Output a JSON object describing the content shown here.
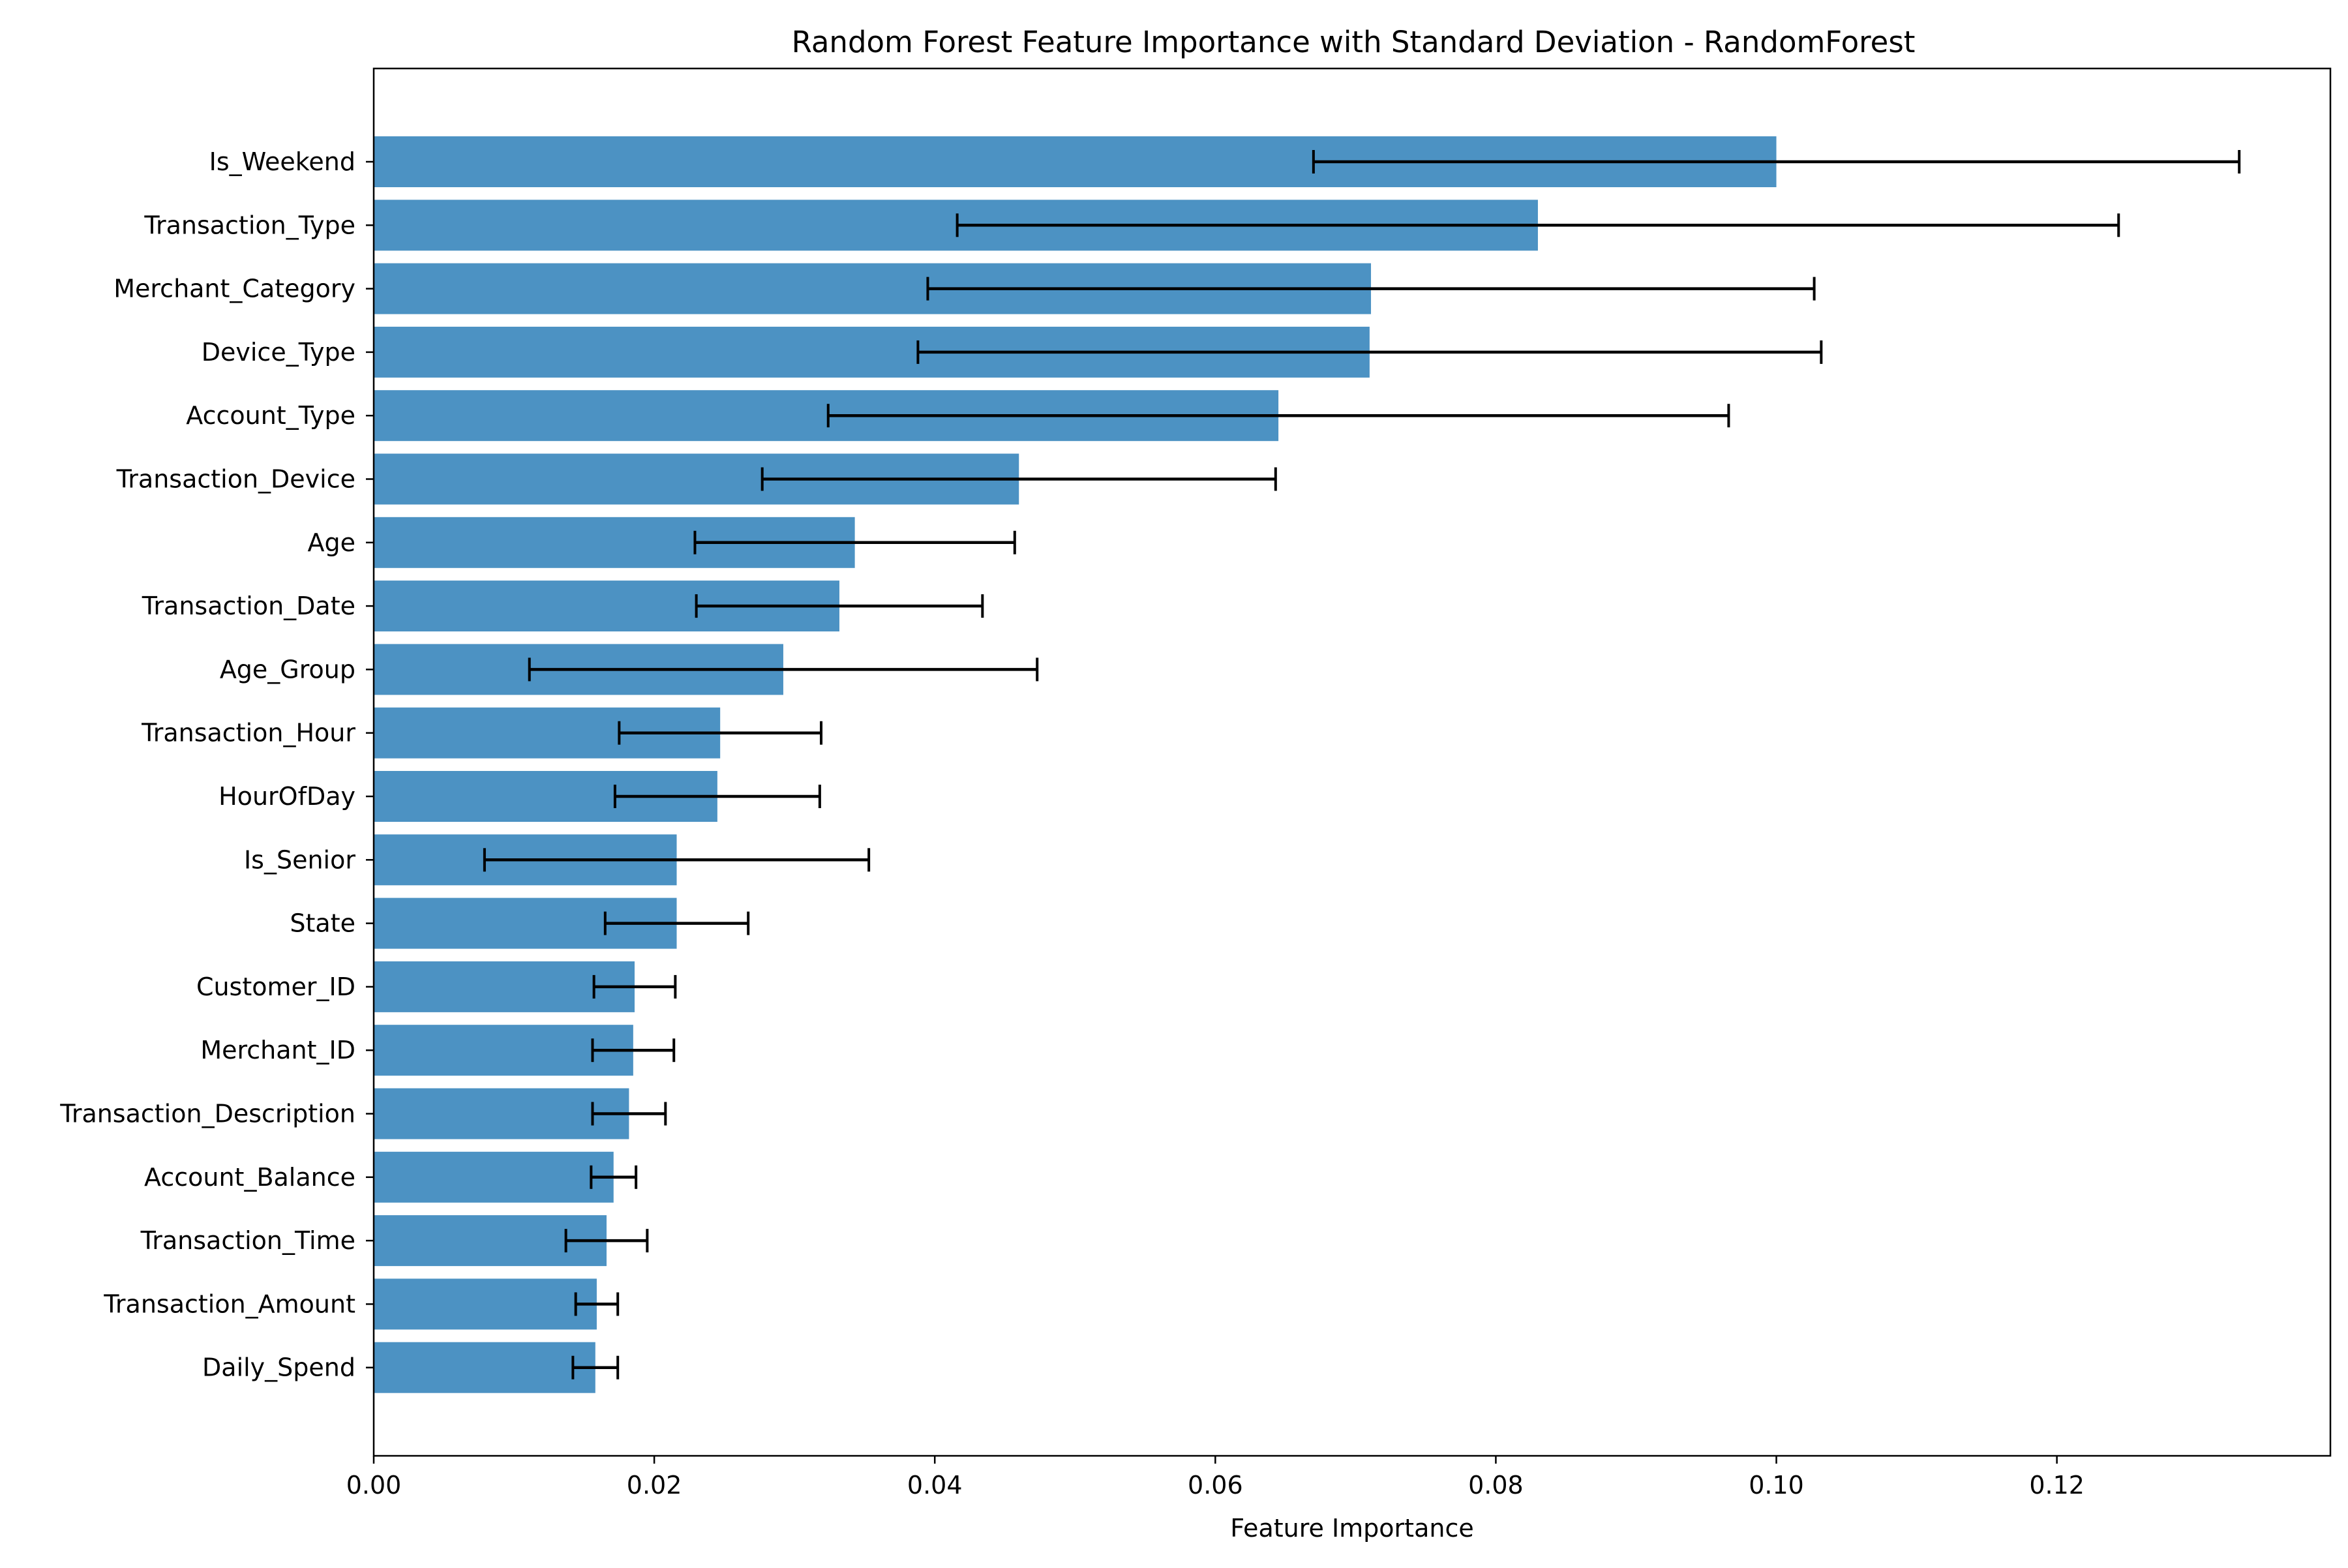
{
  "chart_data": {
    "type": "bar",
    "orientation": "horizontal",
    "title": "Random Forest Feature Importance with Standard Deviation - RandomForest",
    "xlabel": "Feature Importance",
    "ylabel": "",
    "xlim": [
      0,
      0.1395
    ],
    "xticks": [
      0.0,
      0.02,
      0.04,
      0.06,
      0.08,
      0.1,
      0.12
    ],
    "xtick_labels": [
      "0.00",
      "0.02",
      "0.04",
      "0.06",
      "0.08",
      "0.10",
      "0.12"
    ],
    "grid": false,
    "legend": "none",
    "bar_color": "#4c92c3",
    "error_bar_color": "#000000",
    "categories": [
      "Is_Weekend",
      "Transaction_Type",
      "Merchant_Category",
      "Device_Type",
      "Account_Type",
      "Transaction_Device",
      "Age",
      "Transaction_Date",
      "Age_Group",
      "Transaction_Hour",
      "HourOfDay",
      "Is_Senior",
      "State",
      "Customer_ID",
      "Merchant_ID",
      "Transaction_Description",
      "Account_Balance",
      "Transaction_Time",
      "Transaction_Amount",
      "Daily_Spend"
    ],
    "values": [
      0.1,
      0.083,
      0.0711,
      0.071,
      0.0645,
      0.046,
      0.0343,
      0.0332,
      0.0292,
      0.0247,
      0.0245,
      0.0216,
      0.0216,
      0.0186,
      0.0185,
      0.0182,
      0.0171,
      0.0166,
      0.0159,
      0.0158
    ],
    "std": [
      0.033,
      0.0414,
      0.0316,
      0.0322,
      0.0321,
      0.0183,
      0.0114,
      0.0102,
      0.0181,
      0.0072,
      0.0073,
      0.0137,
      0.0051,
      0.0029,
      0.0029,
      0.0026,
      0.0016,
      0.0029,
      0.0015,
      0.0016
    ]
  }
}
